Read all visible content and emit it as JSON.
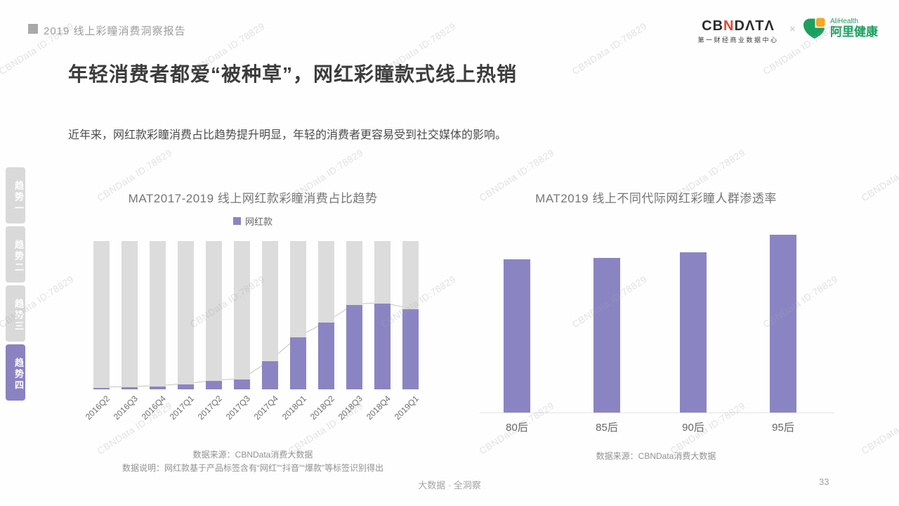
{
  "header": {
    "report_label": "2019 线上彩瞳消费洞察报告"
  },
  "logos": {
    "cbndata_left": "CB",
    "cbndata_n": "N",
    "cbndata_right": "DΛTΛ",
    "cbndata_tagline": "第一财经商业数据中心",
    "separator": "×",
    "alihealth_en": "AliHealth",
    "alihealth_cn": "阿里健康"
  },
  "title": "年轻消费者都爱“被种草”，网红彩瞳款式线上热销",
  "subtitle": "近年来，网红款彩瞳消费占比趋势提升明显，年轻的消费者更容易受到社交媒体的影响。",
  "sidebar": {
    "items": [
      {
        "label": "趋势一",
        "active": false
      },
      {
        "label": "趋势二",
        "active": false
      },
      {
        "label": "趋势三",
        "active": false
      },
      {
        "label": "趋势四",
        "active": true
      }
    ]
  },
  "chart_data": [
    {
      "type": "bar",
      "subtype": "share-bars-on-100%-background-with-line-overlay",
      "title": "MAT2017-2019 线上网红款彩瞳消费占比趋势",
      "categories": [
        "2016Q2",
        "2016Q3",
        "2016Q4",
        "2017Q1",
        "2017Q2",
        "2017Q3",
        "2017Q4",
        "2018Q1",
        "2018Q2",
        "2018Q3",
        "2018Q4",
        "2019Q1"
      ],
      "series": [
        {
          "name": "网红款",
          "values": [
            1,
            1.4,
            2,
            3.3,
            5.7,
            6.7,
            19,
            35,
            45,
            57,
            58,
            54
          ]
        }
      ],
      "background_bar_value": 100,
      "ylim": [
        0,
        100
      ],
      "legend_position": "top",
      "grid": false,
      "values_note": "share in %, estimated from bar heights; axis unlabeled",
      "source": "数据来源：CBNData消费大数据",
      "note": "数据说明：网红款基于产品标签含有“网红”“抖音”“爆款”等标签识别得出"
    },
    {
      "type": "bar",
      "title": "MAT2019 线上不同代际网红彩瞳人群渗透率",
      "categories": [
        "80后",
        "85后",
        "90后",
        "95后"
      ],
      "values": [
        86,
        87,
        90,
        100
      ],
      "ylim": [
        0,
        100
      ],
      "grid": false,
      "values_note": "axis unlabeled; relative heights, tallest bar (95后) = 100",
      "source": "数据来源：CBNData消费大数据"
    }
  ],
  "footer": {
    "center": "大数据 · 全洞察",
    "page_number": "33"
  },
  "watermark": {
    "text": "CBNData ID:78829"
  },
  "colors": {
    "accent_purple": "#8B84C3",
    "background_bar_gray": "#DCDCDC",
    "line_overlay": "#C9C2BA",
    "tab_inactive": "#D9D9D9",
    "tab_active": "#8B82C1",
    "cbndata_red": "#E8432E",
    "alihealth_green": "#1BA05F",
    "alihealth_orange": "#F5A623"
  }
}
